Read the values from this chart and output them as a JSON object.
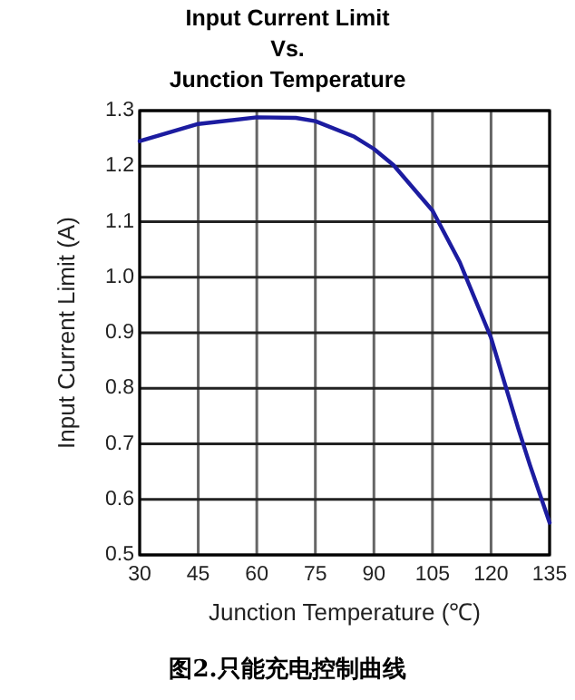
{
  "chart_data": {
    "type": "line",
    "title": "Input Current Limit\nVs.\nJunction Temperature",
    "xlabel": "Junction Temperature (℃)",
    "ylabel": "Input Current Limit (A)",
    "annotations": [
      "图2.只能充电控制曲线"
    ],
    "series": [
      {
        "color": "#1c1ca0",
        "x": [
          30,
          45,
          60,
          70,
          75,
          85,
          90,
          95,
          105,
          112,
          120,
          127,
          130,
          135
        ],
        "values": [
          1.245,
          1.276,
          1.288,
          1.287,
          1.281,
          1.253,
          1.231,
          1.202,
          1.12,
          1.027,
          0.891,
          0.727,
          0.661,
          0.558
        ]
      }
    ],
    "xlim": [
      30,
      135
    ],
    "xticks": [
      30,
      45,
      60,
      75,
      90,
      105,
      120,
      135
    ],
    "ylim": [
      0.5,
      1.3
    ],
    "yticks": [
      0.5,
      0.6,
      0.7,
      0.8,
      0.9,
      {
        "value": 1.0,
        "label": "1.0"
      },
      1.1,
      1.2,
      1.3
    ],
    "grid": true,
    "marker": "none",
    "line_style": "solid"
  }
}
